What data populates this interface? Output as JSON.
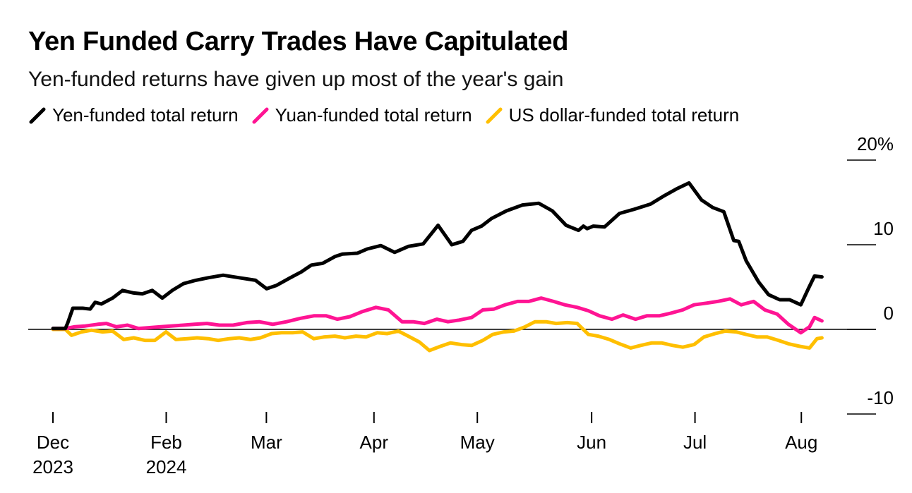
{
  "title": "Yen Funded Carry Trades Have Capitulated",
  "subtitle": "Yen-funded returns have given up most of the year's gain",
  "chart_data": {
    "type": "line",
    "title": "Yen Funded Carry Trades Have Capitulated",
    "subtitle": "Yen-funded returns have given up most of the year's gain",
    "xlabel": "",
    "ylabel": "",
    "ylim": [
      -10,
      20
    ],
    "y_ticks": [
      20,
      10,
      0,
      -10
    ],
    "y_tick_labels": [
      "20%",
      "10",
      "0",
      "-10"
    ],
    "x_ticks": [
      {
        "t": 0,
        "line1": "Dec",
        "line2": "2023"
      },
      {
        "t": 9.12,
        "line1": "Feb",
        "line2": "2024"
      },
      {
        "t": 17.18,
        "line1": "Mar",
        "line2": ""
      },
      {
        "t": 25.84,
        "line1": "Apr",
        "line2": ""
      },
      {
        "t": 34.16,
        "line1": "May",
        "line2": ""
      },
      {
        "t": 43.36,
        "line1": "Jun",
        "line2": ""
      },
      {
        "t": 51.68,
        "line1": "Jul",
        "line2": ""
      },
      {
        "t": 60.24,
        "line1": "Aug",
        "line2": ""
      }
    ],
    "x_unit": "weeks since start of Dec 2023",
    "zero_line": true,
    "legend": [
      {
        "name": "Yen-funded total return",
        "color": "#000000"
      },
      {
        "name": "Yuan-funded total return",
        "color": "#ff1493"
      },
      {
        "name": "US dollar-funded total return",
        "color": "#ffbf00"
      }
    ],
    "series": [
      {
        "name": "Yen-funded total return",
        "color": "#000000",
        "x": [
          0,
          1,
          1.2,
          1.6,
          2.4,
          3.0,
          3.4,
          3.9,
          4.8,
          5.6,
          6.5,
          7.2,
          8.0,
          8.8,
          9.6,
          10.5,
          11.5,
          12.5,
          13.7,
          15.0,
          16.3,
          17.2,
          18.0,
          19.1,
          20.0,
          20.8,
          21.7,
          22.7,
          23.3,
          24.5,
          25.3,
          26.4,
          27.5,
          28.6,
          29.8,
          31.0,
          32.1,
          33.0,
          33.7,
          34.5,
          35.3,
          36.5,
          37.8,
          39.1,
          40.2,
          41.3,
          42.3,
          42.7,
          43.0,
          43.5,
          44.4,
          45.6,
          46.8,
          48.1,
          49.1,
          50.2,
          51.2,
          52.2,
          53.1,
          54.0,
          54.8,
          55.2,
          55.8,
          56.8,
          57.6,
          58.5,
          59.3,
          60.2,
          60.8,
          61.3,
          61.9
        ],
        "y": [
          0.1,
          0.1,
          0.8,
          2.5,
          2.5,
          2.4,
          3.2,
          3.0,
          3.7,
          4.6,
          4.3,
          4.2,
          4.6,
          3.7,
          4.6,
          5.4,
          5.8,
          6.1,
          6.4,
          6.1,
          5.8,
          4.8,
          5.2,
          6.1,
          6.8,
          7.6,
          7.8,
          8.6,
          8.9,
          9.0,
          9.5,
          9.9,
          9.1,
          9.8,
          10.1,
          12.3,
          10.0,
          10.4,
          11.7,
          12.2,
          13.1,
          14.0,
          14.7,
          14.9,
          14.0,
          12.3,
          11.7,
          12.2,
          11.9,
          12.2,
          12.1,
          13.7,
          14.2,
          14.8,
          15.7,
          16.6,
          17.3,
          15.3,
          14.4,
          13.9,
          10.5,
          10.4,
          8.1,
          5.6,
          4.1,
          3.5,
          3.5,
          2.9,
          4.8,
          6.3,
          6.2
        ]
      },
      {
        "name": "Yuan-funded total return",
        "color": "#ff1493",
        "x": [
          0,
          1,
          1.7,
          2.6,
          3.6,
          4.3,
          5.1,
          6.0,
          6.9,
          7.7,
          8.6,
          9.5,
          10.5,
          11.4,
          12.4,
          13.4,
          14.5,
          15.6,
          16.6,
          17.7,
          18.8,
          19.9,
          21.0,
          22.0,
          22.9,
          23.9,
          24.9,
          26.0,
          27.0,
          28.1,
          29.0,
          29.9,
          30.9,
          31.8,
          32.7,
          33.7,
          34.6,
          35.5,
          36.4,
          37.4,
          38.3,
          39.3,
          40.3,
          41.2,
          42.2,
          43.1,
          44.0,
          45.0,
          45.9,
          46.9,
          47.8,
          48.8,
          49.7,
          50.7,
          51.6,
          52.6,
          53.5,
          54.5,
          55.4,
          56.4,
          57.3,
          58.3,
          59.2,
          60.2,
          60.9,
          61.3,
          61.9
        ],
        "y": [
          0.1,
          0.1,
          0.3,
          0.4,
          0.6,
          0.7,
          0.3,
          0.5,
          0.1,
          0.2,
          0.3,
          0.4,
          0.5,
          0.6,
          0.7,
          0.5,
          0.5,
          0.8,
          0.9,
          0.6,
          0.9,
          1.3,
          1.6,
          1.6,
          1.2,
          1.5,
          2.1,
          2.6,
          2.3,
          0.9,
          0.9,
          0.7,
          1.2,
          0.9,
          1.1,
          1.4,
          2.3,
          2.4,
          2.9,
          3.3,
          3.3,
          3.7,
          3.3,
          2.9,
          2.6,
          2.2,
          1.6,
          1.2,
          1.7,
          1.2,
          1.6,
          1.6,
          1.9,
          2.3,
          2.9,
          3.1,
          3.3,
          3.6,
          2.9,
          3.3,
          2.3,
          1.8,
          0.6,
          -0.4,
          0.3,
          1.4,
          1.0
        ]
      },
      {
        "name": "US dollar-funded total return",
        "color": "#ffbf00",
        "x": [
          0,
          1,
          1.5,
          2.3,
          3.1,
          4.0,
          4.8,
          5.7,
          6.5,
          7.4,
          8.2,
          9.1,
          9.9,
          10.8,
          11.6,
          12.5,
          13.3,
          14.2,
          15.0,
          15.9,
          16.7,
          17.6,
          18.4,
          19.3,
          20.1,
          21.0,
          21.8,
          22.7,
          23.5,
          24.4,
          25.2,
          26.1,
          26.9,
          27.8,
          28.6,
          29.5,
          30.3,
          31.2,
          32.0,
          32.9,
          33.7,
          34.6,
          35.4,
          36.3,
          37.1,
          38.0,
          38.8,
          39.7,
          40.5,
          41.4,
          42.2,
          43.1,
          43.9,
          44.8,
          45.6,
          46.5,
          47.3,
          48.2,
          49.0,
          49.9,
          50.7,
          51.6,
          52.4,
          53.3,
          54.1,
          55.0,
          55.8,
          56.7,
          57.5,
          58.4,
          59.2,
          60.1,
          60.9,
          61.5,
          61.9
        ],
        "y": [
          0.0,
          0.0,
          -0.7,
          -0.3,
          -0.1,
          -0.3,
          -0.2,
          -1.2,
          -1.0,
          -1.3,
          -1.3,
          -0.3,
          -1.2,
          -1.1,
          -1.0,
          -1.1,
          -1.3,
          -1.1,
          -1.0,
          -1.2,
          -1.0,
          -0.5,
          -0.4,
          -0.4,
          -0.3,
          -1.1,
          -0.9,
          -0.8,
          -1.0,
          -0.8,
          -0.9,
          -0.4,
          -0.5,
          -0.2,
          -0.8,
          -1.5,
          -2.5,
          -2.0,
          -1.6,
          -1.8,
          -1.9,
          -1.3,
          -0.6,
          -0.3,
          -0.2,
          0.3,
          0.9,
          0.9,
          0.7,
          0.8,
          0.7,
          -0.6,
          -0.8,
          -1.2,
          -1.7,
          -2.2,
          -1.9,
          -1.6,
          -1.6,
          -1.9,
          -2.1,
          -1.8,
          -0.9,
          -0.5,
          -0.2,
          -0.3,
          -0.6,
          -0.9,
          -0.9,
          -1.3,
          -1.7,
          -2.0,
          -2.2,
          -1.1,
          -1.0
        ]
      }
    ]
  }
}
